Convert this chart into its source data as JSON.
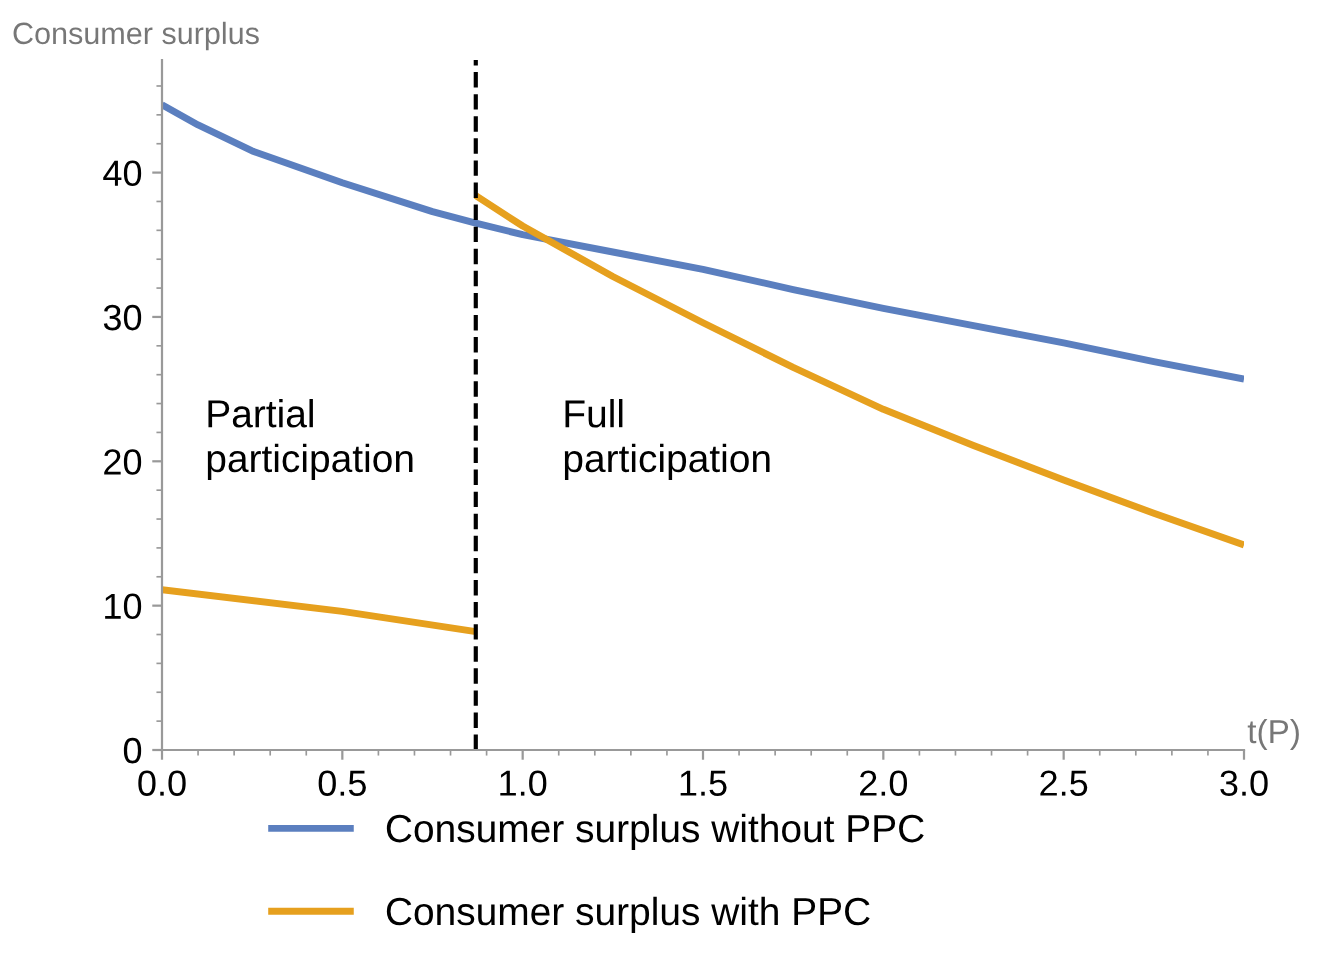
{
  "chart_data": {
    "type": "line",
    "ylabel": "Consumer surplus",
    "xlabel": "t(P)",
    "xlim": [
      0,
      3
    ],
    "xticks": [
      {
        "value": 0,
        "label": "0.0"
      },
      {
        "value": 0.5,
        "label": "0.5"
      },
      {
        "value": 1,
        "label": "1.0"
      },
      {
        "value": 1.5,
        "label": "1.5"
      },
      {
        "value": 2,
        "label": "2.0"
      },
      {
        "value": 2.5,
        "label": "2.5"
      },
      {
        "value": 3,
        "label": "3.0"
      }
    ],
    "ylim": [
      0,
      47.8
    ],
    "yticks": [
      0,
      10,
      20,
      30,
      40
    ],
    "series": [
      {
        "name": "Consumer surplus without PPC",
        "color": "#5b7fbf",
        "x": [
          0,
          0.1,
          0.25,
          0.5,
          0.75,
          0.87,
          1.0,
          1.25,
          1.5,
          1.75,
          2.0,
          2.25,
          2.5,
          2.75,
          3.0
        ],
        "values": [
          44.7,
          43.3,
          41.5,
          39.3,
          37.3,
          36.5,
          35.7,
          34.5,
          33.3,
          31.9,
          30.6,
          29.4,
          28.2,
          26.9,
          25.7
        ]
      },
      {
        "name": "Consumer surplus with PPC",
        "color": "#e6a01e",
        "x": [
          0,
          0.5,
          0.87
        ],
        "values": [
          11.1,
          9.6,
          8.2
        ]
      },
      {
        "color": "#e6a01e",
        "x": [
          0.87,
          1.0,
          1.25,
          1.5,
          1.75,
          2.0,
          2.25,
          2.5,
          2.75,
          3.0
        ],
        "values": [
          38.4,
          36.3,
          32.8,
          29.6,
          26.5,
          23.6,
          21.1,
          18.7,
          16.4,
          14.2
        ]
      }
    ],
    "ref_lines": [
      {
        "axis": "x",
        "value": 0.87,
        "color": "#000000",
        "line_style": "dashed"
      }
    ],
    "annotations": [
      "Partial\nparticipation",
      "Full\nparticipation"
    ],
    "legend": "bottom",
    "grid": false,
    "marker": "none",
    "line_style": "solid"
  }
}
